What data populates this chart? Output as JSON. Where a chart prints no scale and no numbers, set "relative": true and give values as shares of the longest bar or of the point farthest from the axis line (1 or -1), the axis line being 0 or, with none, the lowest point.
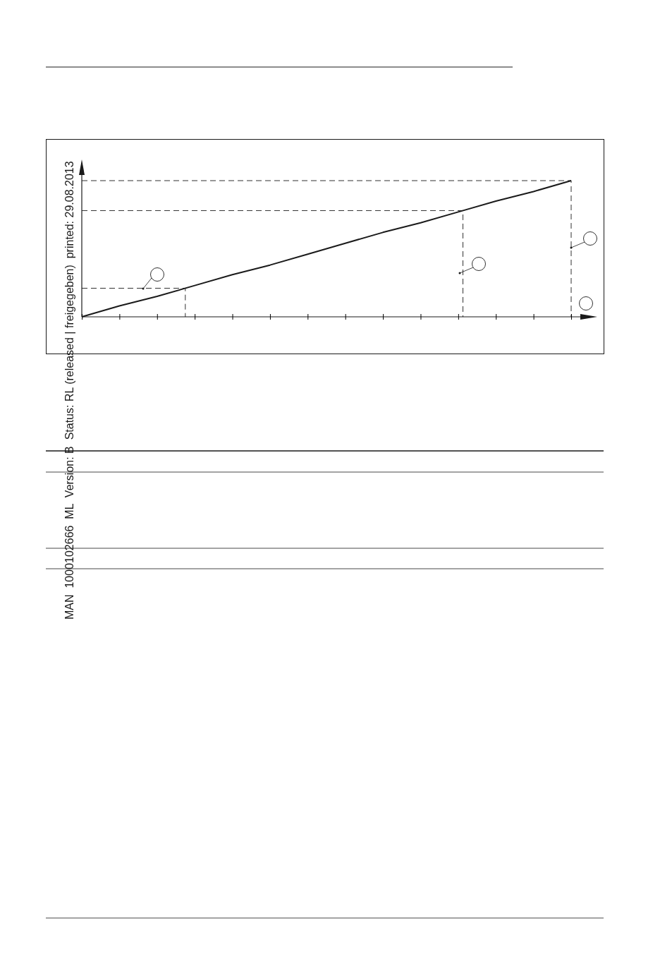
{
  "chart_data": {
    "type": "line",
    "relative": true,
    "categories": [
      null,
      null,
      null,
      null,
      null,
      null,
      null,
      null,
      null,
      null,
      null,
      null,
      null,
      null
    ],
    "series": [
      {
        "color": "#1a1a1a",
        "values": [
          0,
          0.08,
          0.15,
          0.23,
          0.31,
          0.38,
          0.46,
          0.54,
          0.62,
          0.69,
          0.77,
          0.85,
          0.92,
          1
        ]
      }
    ],
    "ref_lines": [
      {
        "axis": "y",
        "value": 0.21,
        "line_style": "dashed",
        "color": "#1a1a1a"
      },
      {
        "axis": "y",
        "value": 0.78,
        "line_style": "dashed",
        "color": "#1a1a1a"
      },
      {
        "axis": "y",
        "value": 1,
        "line_style": "dashed",
        "color": "#1a1a1a"
      }
    ],
    "annotations": [
      "MAN  1000102666  ML  Version: B  Status: RL (released | freigegeben)  printed: 29.08.2013"
    ],
    "marker": "none",
    "line_style": "solid"
  }
}
